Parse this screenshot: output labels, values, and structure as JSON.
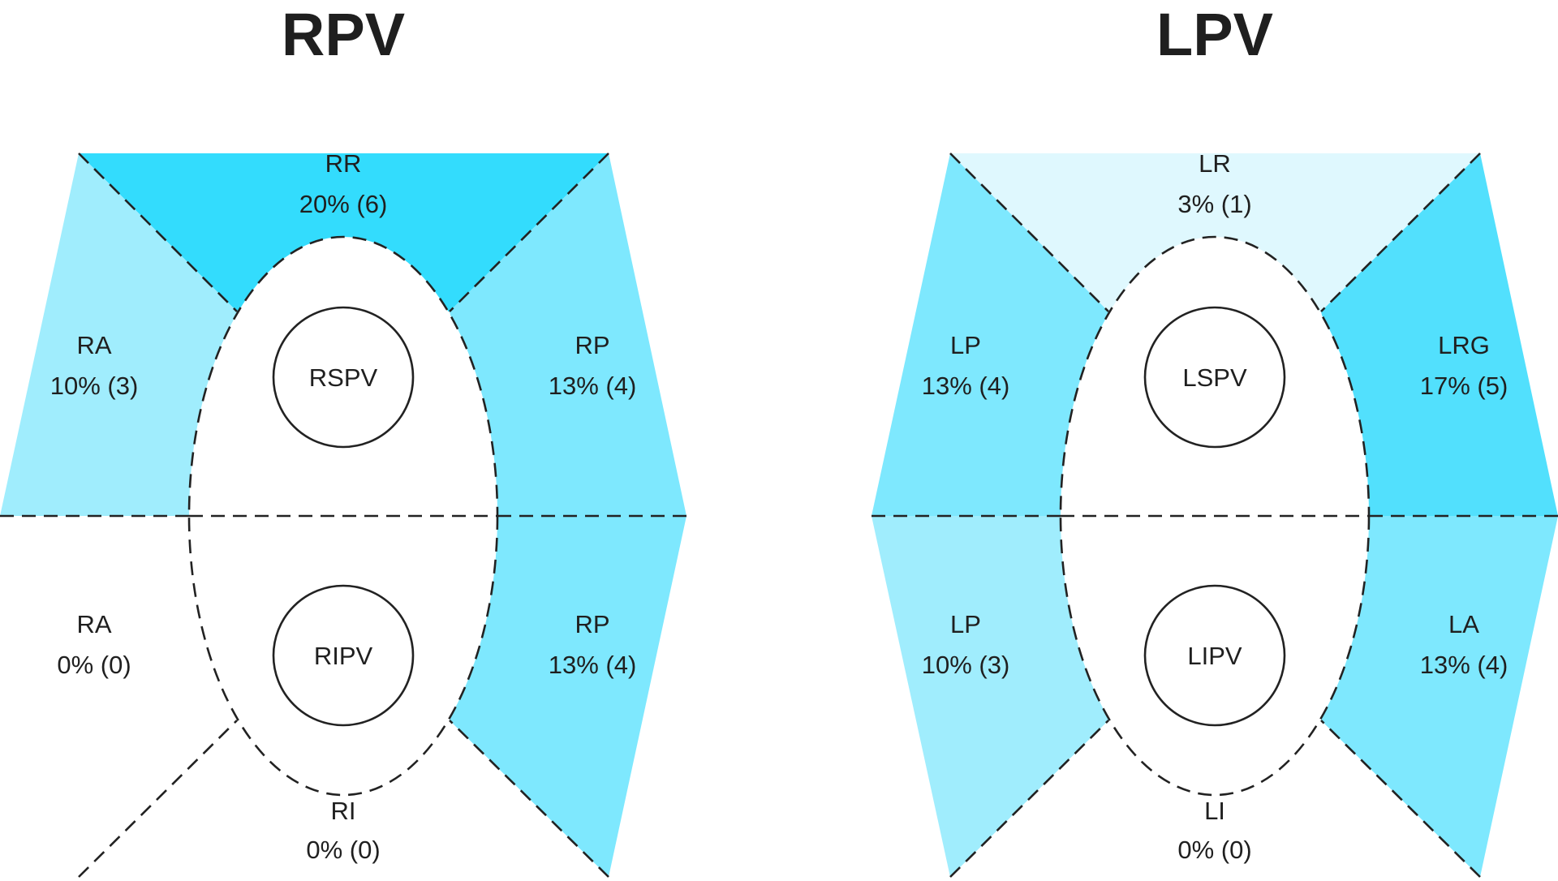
{
  "diagrams": [
    {
      "id": "rpv",
      "title": "RPV",
      "veins": {
        "upper": "RSPV",
        "lower": "RIPV"
      },
      "segments": {
        "top": {
          "name": "RR",
          "stat": "20% (6)",
          "percent": 20,
          "color": "#33dcfd"
        },
        "upper_left": {
          "name": "RA",
          "stat": "10% (3)",
          "percent": 10,
          "color": "#a0edfd"
        },
        "upper_right": {
          "name": "RP",
          "stat": "13% (4)",
          "percent": 13,
          "color": "#7ee8fe"
        },
        "lower_left": {
          "name": "RA",
          "stat": "0% (0)",
          "percent": 0,
          "color": "#ffffff"
        },
        "lower_right": {
          "name": "RP",
          "stat": "13% (4)",
          "percent": 13,
          "color": "#7ee8fe"
        },
        "bottom": {
          "name": "RI",
          "stat": "0% (0)",
          "percent": 0,
          "color": "#ffffff"
        }
      }
    },
    {
      "id": "lpv",
      "title": "LPV",
      "veins": {
        "upper": "LSPV",
        "lower": "LIPV"
      },
      "segments": {
        "top": {
          "name": "LR",
          "stat": "3% (1)",
          "percent": 3,
          "color": "#dff8fe"
        },
        "upper_left": {
          "name": "LP",
          "stat": "13% (4)",
          "percent": 13,
          "color": "#7ee8fe"
        },
        "upper_right": {
          "name": "LRG",
          "stat": "17% (5)",
          "percent": 17,
          "color": "#52e0fd"
        },
        "lower_left": {
          "name": "LP",
          "stat": "10% (3)",
          "percent": 10,
          "color": "#a0edfd"
        },
        "lower_right": {
          "name": "LA",
          "stat": "13% (4)",
          "percent": 13,
          "color": "#7ee8fe"
        },
        "bottom": {
          "name": "LI",
          "stat": "0% (0)",
          "percent": 0,
          "color": "#ffffff"
        }
      }
    }
  ]
}
